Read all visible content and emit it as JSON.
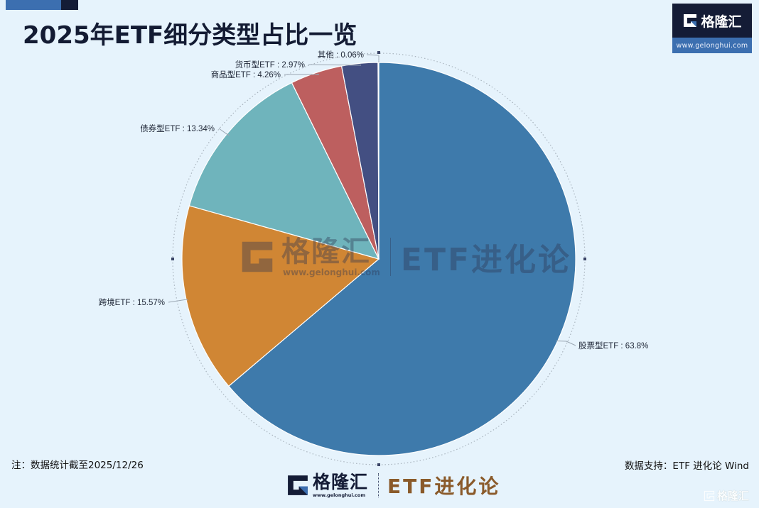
{
  "header": {
    "title": "2025年ETF细分类型占比一览",
    "brand_name": "格隆汇",
    "brand_url": "www.gelonghui.com"
  },
  "colors": {
    "background": "#e6f3fc",
    "accent_blue": "#3c6fb0",
    "accent_dark": "#141c36",
    "etf_brand_brown": "#8a5a2a"
  },
  "chart_data": {
    "type": "pie",
    "title": "2025年ETF细分类型占比一览",
    "unit": "%",
    "start_angle": "12 o'clock, clockwise",
    "slices": [
      {
        "name": "股票型ETF",
        "value": 63.8,
        "label": "股票型ETF : 63.8%",
        "color": "#3e7aab"
      },
      {
        "name": "跨境ETF",
        "value": 15.57,
        "label": "跨境ETF : 15.57%",
        "color": "#d08634"
      },
      {
        "name": "债券型ETF",
        "value": 13.34,
        "label": "债券型ETF : 13.34%",
        "color": "#6fb4bc"
      },
      {
        "name": "商品型ETF",
        "value": 4.26,
        "label": "商品型ETF : 4.26%",
        "color": "#bd5f5f"
      },
      {
        "name": "货币型ETF",
        "value": 2.97,
        "label": "货币型ETF : 2.97%",
        "color": "#434f82"
      },
      {
        "name": "其他",
        "value": 0.06,
        "label": "其他 : 0.06%",
        "color": "#8fb7d8"
      }
    ],
    "legend": "none (labels with leader lines)"
  },
  "watermark": {
    "brand_name": "格隆汇",
    "brand_url": "www.gelonghui.com",
    "etf_name": "ETF进化论"
  },
  "footer": {
    "note": "注：数据统计截至2025/12/26",
    "source": "数据支持：ETF 进化论 Wind",
    "brand_name": "格隆汇",
    "brand_url": "www.gelonghui.com",
    "etf_name": "ETF进化论",
    "corner_watermark": "格隆汇"
  }
}
